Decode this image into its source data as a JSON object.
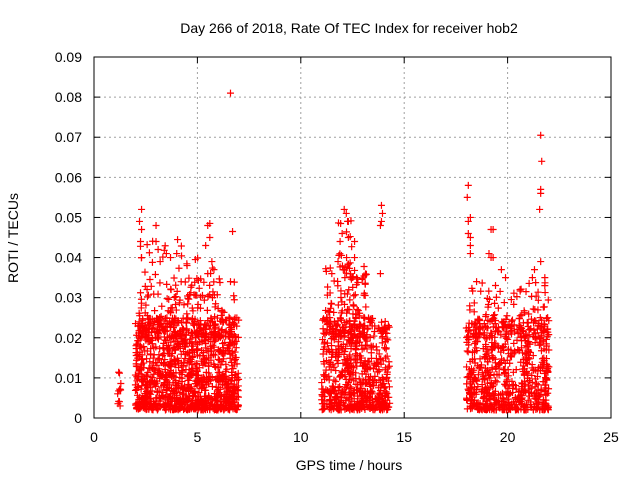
{
  "chart_data": {
    "type": "scatter",
    "title": "Day 266 of 2018, Rate Of TEC Index for receiver hob2",
    "xlabel": "GPS time / hours",
    "ylabel": "ROTI / TECUs",
    "xlim": [
      0,
      25
    ],
    "ylim": [
      0,
      0.09
    ],
    "xticks": [
      "0",
      "5",
      "10",
      "15",
      "20",
      "25"
    ],
    "yticks": [
      "0",
      "0.01",
      "0.02",
      "0.03",
      "0.04",
      "0.05",
      "0.06",
      "0.07",
      "0.08",
      "0.09"
    ],
    "grid": true,
    "marker": "+",
    "color": "#ff0000",
    "series": [
      {
        "clusters": [
          {
            "x": [
              1.1,
              1.3
            ],
            "y": [
              0.003,
              0.012
            ],
            "n": 12
          },
          {
            "x": [
              2.0,
              7.0
            ],
            "y": [
              0.002,
              0.025
            ],
            "n": 1100
          },
          {
            "x": [
              2.1,
              6.9
            ],
            "y": [
              0.02,
              0.035
            ],
            "n": 160
          },
          {
            "x": [
              2.2,
              6.0
            ],
            "y": [
              0.03,
              0.045
            ],
            "n": 45
          },
          {
            "x": [
              11.0,
              14.3
            ],
            "y": [
              0.002,
              0.025
            ],
            "n": 600
          },
          {
            "x": [
              11.2,
              13.2
            ],
            "y": [
              0.02,
              0.038
            ],
            "n": 120
          },
          {
            "x": [
              11.8,
              12.6
            ],
            "y": [
              0.035,
              0.05
            ],
            "n": 25
          },
          {
            "x": [
              18.0,
              22.0
            ],
            "y": [
              0.002,
              0.025
            ],
            "n": 650
          },
          {
            "x": [
              18.1,
              22.0
            ],
            "y": [
              0.02,
              0.034
            ],
            "n": 110
          }
        ],
        "points": [
          {
            "x": 6.6,
            "y": 0.081
          },
          {
            "x": 6.7,
            "y": 0.0465
          },
          {
            "x": 6.6,
            "y": 0.034
          },
          {
            "x": 2.3,
            "y": 0.052
          },
          {
            "x": 2.2,
            "y": 0.049
          },
          {
            "x": 2.3,
            "y": 0.047
          },
          {
            "x": 2.25,
            "y": 0.044
          },
          {
            "x": 2.3,
            "y": 0.04
          },
          {
            "x": 3.0,
            "y": 0.048
          },
          {
            "x": 3.0,
            "y": 0.044
          },
          {
            "x": 3.1,
            "y": 0.042
          },
          {
            "x": 3.2,
            "y": 0.039
          },
          {
            "x": 3.5,
            "y": 0.041
          },
          {
            "x": 3.7,
            "y": 0.04
          },
          {
            "x": 4.0,
            "y": 0.041
          },
          {
            "x": 4.5,
            "y": 0.038
          },
          {
            "x": 4.9,
            "y": 0.0395
          },
          {
            "x": 5.4,
            "y": 0.043
          },
          {
            "x": 5.6,
            "y": 0.0485
          },
          {
            "x": 5.5,
            "y": 0.048
          },
          {
            "x": 5.6,
            "y": 0.045
          },
          {
            "x": 5.7,
            "y": 0.039
          },
          {
            "x": 5.8,
            "y": 0.037
          },
          {
            "x": 5.5,
            "y": 0.036
          },
          {
            "x": 12.1,
            "y": 0.052
          },
          {
            "x": 12.2,
            "y": 0.051
          },
          {
            "x": 12.3,
            "y": 0.049
          },
          {
            "x": 12.0,
            "y": 0.046
          },
          {
            "x": 11.9,
            "y": 0.044
          },
          {
            "x": 12.3,
            "y": 0.045
          },
          {
            "x": 12.6,
            "y": 0.044
          },
          {
            "x": 12.6,
            "y": 0.04
          },
          {
            "x": 12.7,
            "y": 0.035
          },
          {
            "x": 11.8,
            "y": 0.039
          },
          {
            "x": 11.5,
            "y": 0.036
          },
          {
            "x": 13.9,
            "y": 0.053
          },
          {
            "x": 13.95,
            "y": 0.051
          },
          {
            "x": 13.9,
            "y": 0.049
          },
          {
            "x": 13.85,
            "y": 0.048
          },
          {
            "x": 13.85,
            "y": 0.036
          },
          {
            "x": 18.1,
            "y": 0.058
          },
          {
            "x": 18.05,
            "y": 0.055
          },
          {
            "x": 18.2,
            "y": 0.05
          },
          {
            "x": 18.1,
            "y": 0.049
          },
          {
            "x": 18.1,
            "y": 0.046
          },
          {
            "x": 18.2,
            "y": 0.045
          },
          {
            "x": 18.2,
            "y": 0.043
          },
          {
            "x": 18.2,
            "y": 0.041
          },
          {
            "x": 19.2,
            "y": 0.047
          },
          {
            "x": 19.3,
            "y": 0.047
          },
          {
            "x": 19.1,
            "y": 0.041
          },
          {
            "x": 19.2,
            "y": 0.04
          },
          {
            "x": 19.3,
            "y": 0.04
          },
          {
            "x": 19.7,
            "y": 0.037
          },
          {
            "x": 18.5,
            "y": 0.034
          },
          {
            "x": 19.9,
            "y": 0.035
          },
          {
            "x": 21.6,
            "y": 0.0705
          },
          {
            "x": 21.65,
            "y": 0.064
          },
          {
            "x": 21.6,
            "y": 0.057
          },
          {
            "x": 21.6,
            "y": 0.056
          },
          {
            "x": 21.55,
            "y": 0.052
          },
          {
            "x": 21.6,
            "y": 0.039
          },
          {
            "x": 21.3,
            "y": 0.037
          },
          {
            "x": 21.8,
            "y": 0.035
          },
          {
            "x": 21.8,
            "y": 0.033
          },
          {
            "x": 20.6,
            "y": 0.032
          },
          {
            "x": 21.2,
            "y": 0.035
          }
        ]
      }
    ]
  }
}
